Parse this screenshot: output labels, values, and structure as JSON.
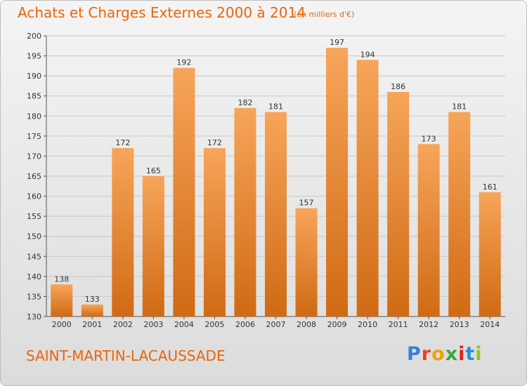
{
  "title": "Achats et Charges Externes 2000 à 2014",
  "subtitle": "(en milliers d'€)",
  "place": "SAINT-MARTIN-LACAUSSADE",
  "logo": {
    "text": "Proxiti",
    "colors": [
      "#3c7fd9",
      "#e8441c",
      "#f2a000",
      "#3aa83a",
      "#e02424",
      "#2a8fd9",
      "#8fc81c"
    ]
  },
  "colors": {
    "title": "#e8660c",
    "bar_top": "#f7a55a",
    "bar_bottom": "#d06a14",
    "grid": "#c8c8c8"
  },
  "chart_data": {
    "type": "bar",
    "title": "Achats et Charges Externes 2000 à 2014",
    "subtitle": "(en milliers d'€)",
    "categories": [
      "2000",
      "2001",
      "2002",
      "2003",
      "2004",
      "2005",
      "2006",
      "2007",
      "2008",
      "2009",
      "2010",
      "2011",
      "2012",
      "2013",
      "2014"
    ],
    "values": [
      138,
      133,
      172,
      165,
      192,
      172,
      182,
      181,
      157,
      197,
      194,
      186,
      173,
      181,
      161
    ],
    "ylim": [
      130,
      200
    ],
    "yticks": [
      130,
      135,
      140,
      145,
      150,
      155,
      160,
      165,
      170,
      175,
      180,
      185,
      190,
      195,
      200
    ],
    "grid": true
  }
}
